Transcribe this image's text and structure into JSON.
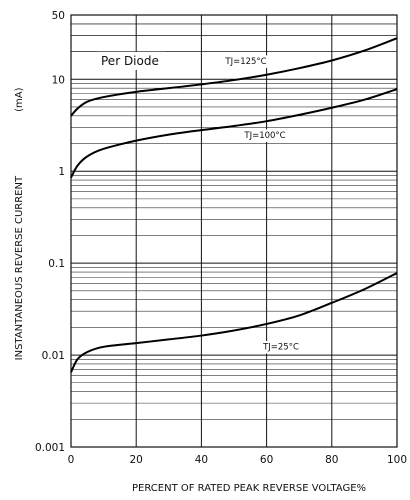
{
  "chart_data": {
    "type": "line",
    "xlabel": "PERCENT OF RATED PEAK REVERSE VOLTAGE%",
    "ylabel": "INSTANTANEOUS REVERSE CURRENT",
    "ylabel_unit": "(mA)",
    "note": "Per Diode",
    "xlim": [
      0,
      100
    ],
    "ylim": [
      0.001,
      50
    ],
    "yscale": "log",
    "x_ticks": [
      "0",
      "20",
      "40",
      "60",
      "80",
      "100"
    ],
    "y_ticks": [
      {
        "value": 0.001,
        "label": "0.001"
      },
      {
        "value": 0.01,
        "label": "0.01"
      },
      {
        "value": 0.1,
        "label": "0.1"
      },
      {
        "value": 1,
        "label": "1"
      },
      {
        "value": 10,
        "label": "10"
      },
      {
        "value": 50,
        "label": "50"
      }
    ],
    "grid": true,
    "series": [
      {
        "name": "TJ=125°C",
        "x": [
          0,
          2,
          5,
          10,
          20,
          30,
          40,
          50,
          60,
          70,
          80,
          90,
          100
        ],
        "y": [
          4,
          4.8,
          5.7,
          6.4,
          7.3,
          8.0,
          8.8,
          9.8,
          11.2,
          13.2,
          16.0,
          20.5,
          28.0
        ]
      },
      {
        "name": "TJ=100°C",
        "x": [
          0,
          2,
          5,
          10,
          20,
          30,
          40,
          50,
          60,
          70,
          80,
          90,
          100
        ],
        "y": [
          0.85,
          1.15,
          1.45,
          1.75,
          2.15,
          2.5,
          2.8,
          3.1,
          3.5,
          4.1,
          4.9,
          6.0,
          7.8
        ]
      },
      {
        "name": "TJ=25°C",
        "x": [
          0,
          2,
          5,
          10,
          20,
          30,
          40,
          50,
          60,
          70,
          80,
          90,
          100
        ],
        "y": [
          0.0065,
          0.009,
          0.0108,
          0.0123,
          0.0135,
          0.0148,
          0.0163,
          0.0185,
          0.0218,
          0.027,
          0.037,
          0.052,
          0.078
        ]
      }
    ]
  }
}
